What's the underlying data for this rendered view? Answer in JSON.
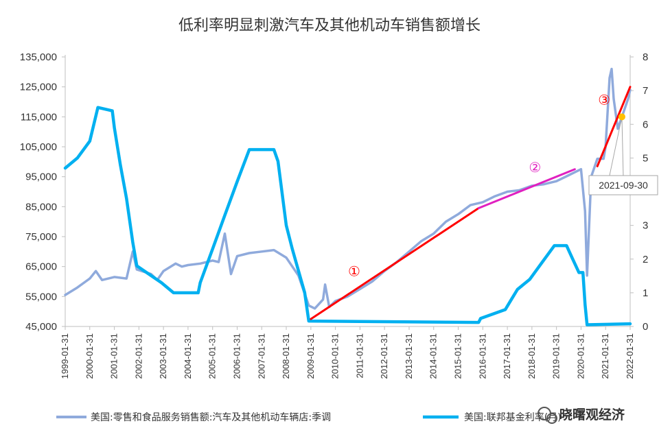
{
  "chart_data": {
    "type": "line",
    "title": "低利率明显刺激汽车及其他机动车销售额增长",
    "x_range": [
      "1999-01-31",
      "2022-01-31"
    ],
    "x_ticks": [
      "1999-01-31",
      "2000-01-31",
      "2001-01-31",
      "2002-01-31",
      "2003-01-31",
      "2004-01-31",
      "2005-01-31",
      "2006-01-31",
      "2007-01-31",
      "2008-01-31",
      "2009-01-31",
      "2010-01-31",
      "2011-01-31",
      "2012-01-31",
      "2013-01-31",
      "2014-01-31",
      "2015-01-31",
      "2016-01-31",
      "2017-01-31",
      "2018-01-31",
      "2019-01-31",
      "2020-01-31",
      "2021-01-31",
      "2022-01-31"
    ],
    "y_left": {
      "range": [
        45000,
        135000
      ],
      "ticks": [
        "45,000",
        "55,000",
        "65,000",
        "75,000",
        "85,000",
        "95,000",
        "105,000",
        "115,000",
        "125,000",
        "135,000"
      ]
    },
    "y_right": {
      "range": [
        0,
        8
      ],
      "ticks": [
        "0",
        "1",
        "2",
        "3",
        "4",
        "5",
        "6",
        "7",
        "8"
      ]
    },
    "grid": false,
    "legend_position": "bottom",
    "series": [
      {
        "name": "美国:零售和食品服务销售额:汽车及其他机动车辆店:季调",
        "axis": "left",
        "color": "#8faadc",
        "points": [
          [
            "1999-01-31",
            55500
          ],
          [
            "1999-07-31",
            58000
          ],
          [
            "2000-01-31",
            61000
          ],
          [
            "2000-04-30",
            63500
          ],
          [
            "2000-07-31",
            60500
          ],
          [
            "2001-01-31",
            61500
          ],
          [
            "2001-07-31",
            61000
          ],
          [
            "2001-10-31",
            70000
          ],
          [
            "2001-12-31",
            64000
          ],
          [
            "2002-07-31",
            62500
          ],
          [
            "2002-10-31",
            60500
          ],
          [
            "2003-01-31",
            63500
          ],
          [
            "2003-07-31",
            66000
          ],
          [
            "2003-10-31",
            65000
          ],
          [
            "2004-01-31",
            65500
          ],
          [
            "2004-07-31",
            66000
          ],
          [
            "2005-01-31",
            67000
          ],
          [
            "2005-04-30",
            66500
          ],
          [
            "2005-07-31",
            76000
          ],
          [
            "2005-10-31",
            62500
          ],
          [
            "2006-01-31",
            68500
          ],
          [
            "2006-07-31",
            69500
          ],
          [
            "2007-01-31",
            70000
          ],
          [
            "2007-07-31",
            70500
          ],
          [
            "2008-01-31",
            68000
          ],
          [
            "2008-07-31",
            62000
          ],
          [
            "2008-12-31",
            52000
          ],
          [
            "2009-03-31",
            51000
          ],
          [
            "2009-07-31",
            54000
          ],
          [
            "2009-08-31",
            59000
          ],
          [
            "2009-10-31",
            51500
          ],
          [
            "2010-01-31",
            53500
          ],
          [
            "2010-07-31",
            55000
          ],
          [
            "2011-01-31",
            57500
          ],
          [
            "2011-07-31",
            60000
          ],
          [
            "2012-01-31",
            63500
          ],
          [
            "2012-07-31",
            66500
          ],
          [
            "2013-01-31",
            70000
          ],
          [
            "2013-07-31",
            73500
          ],
          [
            "2014-01-31",
            76000
          ],
          [
            "2014-07-31",
            80000
          ],
          [
            "2015-01-31",
            82500
          ],
          [
            "2015-07-31",
            85500
          ],
          [
            "2016-01-31",
            86500
          ],
          [
            "2016-07-31",
            88500
          ],
          [
            "2017-01-31",
            90000
          ],
          [
            "2017-07-31",
            90500
          ],
          [
            "2018-01-31",
            92000
          ],
          [
            "2018-07-31",
            92500
          ],
          [
            "2019-01-31",
            93500
          ],
          [
            "2019-07-31",
            95500
          ],
          [
            "2020-01-31",
            97500
          ],
          [
            "2020-03-31",
            83500
          ],
          [
            "2020-04-30",
            62000
          ],
          [
            "2020-06-30",
            95000
          ],
          [
            "2020-09-30",
            101000
          ],
          [
            "2020-12-31",
            101000
          ],
          [
            "2021-01-31",
            105000
          ],
          [
            "2021-03-31",
            128000
          ],
          [
            "2021-04-30",
            131000
          ],
          [
            "2021-05-31",
            121000
          ],
          [
            "2021-07-31",
            111000
          ],
          [
            "2021-09-30",
            115000
          ],
          [
            "2021-12-31",
            121000
          ],
          [
            "2022-01-31",
            124000
          ]
        ]
      },
      {
        "name": "美国:联邦基金利率(月)",
        "axis": "right",
        "color": "#00b0f0",
        "points": [
          [
            "1999-01-31",
            4.7
          ],
          [
            "1999-07-31",
            5.0
          ],
          [
            "2000-01-31",
            5.5
          ],
          [
            "2000-05-31",
            6.5
          ],
          [
            "2000-12-31",
            6.4
          ],
          [
            "2001-01-31",
            5.9
          ],
          [
            "2001-04-30",
            4.8
          ],
          [
            "2001-07-31",
            3.8
          ],
          [
            "2001-10-31",
            2.5
          ],
          [
            "2001-12-31",
            1.8
          ],
          [
            "2002-12-31",
            1.3
          ],
          [
            "2003-06-30",
            1.0
          ],
          [
            "2004-06-30",
            1.0
          ],
          [
            "2004-07-31",
            1.3
          ],
          [
            "2005-01-31",
            2.3
          ],
          [
            "2005-07-31",
            3.3
          ],
          [
            "2006-01-31",
            4.3
          ],
          [
            "2006-07-31",
            5.25
          ],
          [
            "2007-07-31",
            5.25
          ],
          [
            "2007-09-30",
            4.9
          ],
          [
            "2008-01-31",
            3.0
          ],
          [
            "2008-04-30",
            2.3
          ],
          [
            "2008-10-31",
            1.0
          ],
          [
            "2008-12-31",
            0.16
          ],
          [
            "2015-11-30",
            0.12
          ],
          [
            "2015-12-31",
            0.24
          ],
          [
            "2016-12-31",
            0.5
          ],
          [
            "2017-03-31",
            0.8
          ],
          [
            "2017-06-30",
            1.1
          ],
          [
            "2017-12-31",
            1.4
          ],
          [
            "2018-06-30",
            1.9
          ],
          [
            "2018-12-31",
            2.4
          ],
          [
            "2019-06-30",
            2.4
          ],
          [
            "2019-09-30",
            2.0
          ],
          [
            "2019-12-31",
            1.6
          ],
          [
            "2020-02-29",
            1.6
          ],
          [
            "2020-03-31",
            0.65
          ],
          [
            "2020-04-30",
            0.05
          ],
          [
            "2022-01-31",
            0.08
          ]
        ]
      }
    ],
    "annotations": [
      {
        "label": "①",
        "color": "#ff0000",
        "line_from": [
          "2009-01-31",
          47500
        ],
        "line_to": [
          "2015-11-30",
          84500
        ]
      },
      {
        "label": "②",
        "color": "#e020c0",
        "line_from": [
          "2015-11-30",
          84500
        ],
        "line_to": [
          "2019-10-31",
          97500
        ]
      },
      {
        "label": "③",
        "color": "#ff0000",
        "line_from": [
          "2020-09-30",
          98500
        ],
        "line_to": [
          "2022-01-31",
          125000
        ]
      }
    ],
    "callout": {
      "label": "2021-09-30",
      "point": [
        "2021-09-30",
        115000
      ],
      "marker_color": "#ffc000"
    }
  },
  "watermark": "晓曙观经济"
}
